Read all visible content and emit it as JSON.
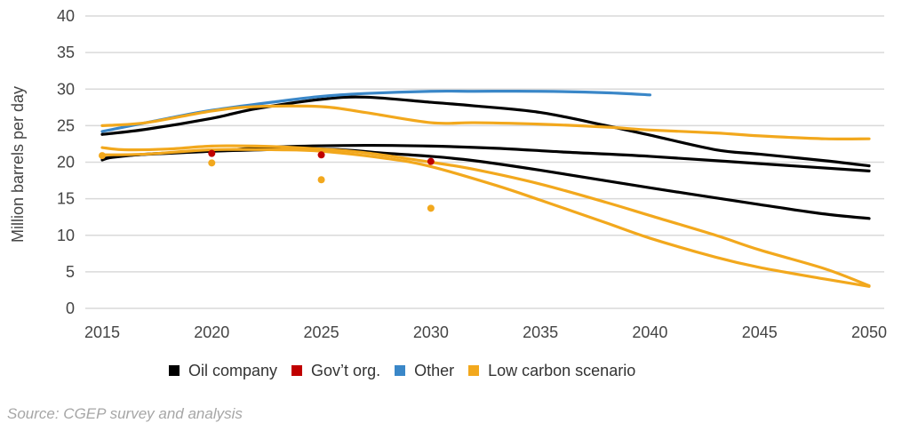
{
  "chart_data": {
    "type": "line",
    "title": "",
    "xlabel": "",
    "ylabel": "Million barrels per day",
    "xlim": [
      2015,
      2050
    ],
    "ylim": [
      0,
      40
    ],
    "x_ticks": [
      "2015",
      "2020",
      "2025",
      "2030",
      "2035",
      "2040",
      "2045",
      "2050"
    ],
    "y_ticks": [
      "0",
      "5",
      "10",
      "15",
      "20",
      "25",
      "30",
      "35",
      "40"
    ],
    "grid": true,
    "legend_position": "bottom",
    "legend": [
      {
        "label": "Oil company",
        "color": "#000000"
      },
      {
        "label": "Gov’t org.",
        "color": "#c00000"
      },
      {
        "label": "Other",
        "color": "#3a87c8"
      },
      {
        "label": "Low carbon scenario",
        "color": "#f2a81d"
      }
    ],
    "series": [
      {
        "group": "Oil company",
        "color": "#000000",
        "points": [
          [
            2015,
            23.8
          ],
          [
            2017,
            24.5
          ],
          [
            2020,
            26.0
          ],
          [
            2022,
            27.3
          ],
          [
            2025,
            28.6
          ],
          [
            2027,
            28.9
          ],
          [
            2030,
            28.2
          ],
          [
            2032,
            27.7
          ],
          [
            2035,
            26.8
          ],
          [
            2038,
            25.0
          ],
          [
            2040,
            23.7
          ],
          [
            2043,
            21.7
          ],
          [
            2045,
            21.1
          ],
          [
            2048,
            20.2
          ],
          [
            2050,
            19.5
          ]
        ]
      },
      {
        "group": "Oil company",
        "color": "#000000",
        "points": [
          [
            2015,
            20.3
          ],
          [
            2016,
            20.9
          ],
          [
            2020,
            21.5
          ],
          [
            2023,
            22.1
          ],
          [
            2027,
            22.3
          ],
          [
            2030,
            22.2
          ],
          [
            2033,
            21.9
          ],
          [
            2036,
            21.4
          ],
          [
            2040,
            20.8
          ],
          [
            2045,
            19.8
          ],
          [
            2050,
            18.8
          ]
        ]
      },
      {
        "group": "Oil company",
        "color": "#000000",
        "points": [
          [
            2015,
            20.5
          ],
          [
            2017,
            21.1
          ],
          [
            2020,
            21.5
          ],
          [
            2025,
            21.8
          ],
          [
            2028,
            21.2
          ],
          [
            2030,
            20.8
          ],
          [
            2032,
            20.2
          ],
          [
            2035,
            18.9
          ],
          [
            2040,
            16.5
          ],
          [
            2045,
            14.2
          ],
          [
            2048,
            12.9
          ],
          [
            2050,
            12.3
          ]
        ]
      },
      {
        "group": "Other",
        "color": "#3a87c8",
        "points": [
          [
            2015,
            24.2
          ],
          [
            2018,
            26.0
          ],
          [
            2020,
            27.1
          ],
          [
            2023,
            28.3
          ],
          [
            2025,
            29.0
          ],
          [
            2027,
            29.4
          ],
          [
            2030,
            29.7
          ],
          [
            2032,
            29.7
          ],
          [
            2035,
            29.7
          ],
          [
            2038,
            29.5
          ],
          [
            2040,
            29.2
          ]
        ]
      },
      {
        "group": "Low carbon scenario",
        "color": "#f2a81d",
        "points": [
          [
            2015,
            25.0
          ],
          [
            2017,
            25.4
          ],
          [
            2020,
            27.0
          ],
          [
            2022,
            27.6
          ],
          [
            2025,
            27.6
          ],
          [
            2027,
            26.8
          ],
          [
            2030,
            25.4
          ],
          [
            2032,
            25.4
          ],
          [
            2035,
            25.2
          ],
          [
            2038,
            24.8
          ],
          [
            2040,
            24.4
          ],
          [
            2043,
            24.0
          ],
          [
            2045,
            23.6
          ],
          [
            2048,
            23.2
          ],
          [
            2050,
            23.2
          ]
        ]
      },
      {
        "group": "Low carbon scenario",
        "color": "#f2a81d",
        "points": [
          [
            2015,
            22.0
          ],
          [
            2016,
            21.7
          ],
          [
            2018,
            21.8
          ],
          [
            2020,
            22.2
          ],
          [
            2022,
            22.2
          ],
          [
            2025,
            21.8
          ],
          [
            2027,
            21.3
          ],
          [
            2030,
            20.0
          ],
          [
            2032,
            19.0
          ],
          [
            2035,
            17.0
          ],
          [
            2038,
            14.5
          ],
          [
            2040,
            12.7
          ],
          [
            2043,
            10.0
          ],
          [
            2045,
            8.0
          ],
          [
            2048,
            5.4
          ],
          [
            2050,
            3.1
          ]
        ]
      },
      {
        "group": "Low carbon scenario",
        "color": "#f2a81d",
        "points": [
          [
            2015,
            21.0
          ],
          [
            2017,
            21.1
          ],
          [
            2020,
            21.7
          ],
          [
            2023,
            21.7
          ],
          [
            2025,
            21.5
          ],
          [
            2028,
            20.5
          ],
          [
            2030,
            19.4
          ],
          [
            2033,
            16.8
          ],
          [
            2035,
            14.8
          ],
          [
            2038,
            11.7
          ],
          [
            2040,
            9.6
          ],
          [
            2043,
            7.0
          ],
          [
            2045,
            5.6
          ],
          [
            2048,
            4.0
          ],
          [
            2050,
            3.0
          ]
        ]
      }
    ],
    "points": [
      {
        "group": "Low carbon scenario",
        "color": "#f2a81d",
        "x": 2015,
        "y": 20.9
      },
      {
        "group": "Gov’t org.",
        "color": "#c00000",
        "x": 2020,
        "y": 21.2
      },
      {
        "group": "Low carbon scenario",
        "color": "#f2a81d",
        "x": 2020,
        "y": 19.9
      },
      {
        "group": "Gov’t org.",
        "color": "#c00000",
        "x": 2025,
        "y": 21.0
      },
      {
        "group": "Low carbon scenario",
        "color": "#f2a81d",
        "x": 2025,
        "y": 17.6
      },
      {
        "group": "Gov’t org.",
        "color": "#c00000",
        "x": 2030,
        "y": 20.1
      },
      {
        "group": "Low carbon scenario",
        "color": "#f2a81d",
        "x": 2030,
        "y": 13.7
      }
    ]
  },
  "source": "Source: CGEP survey and analysis"
}
